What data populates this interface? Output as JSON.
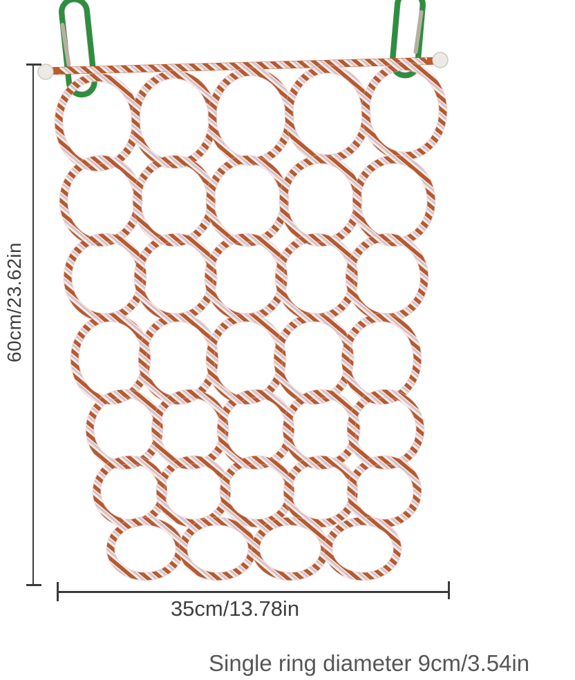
{
  "dimensions": {
    "height_label": "60cm/23.62in",
    "width_label": "35cm/13.78in",
    "ring_note": "Single ring diameter 9cm/3.54in"
  },
  "net": {
    "rows": 7,
    "rings_per_row": [
      5,
      5,
      5,
      5,
      5,
      5,
      4
    ]
  },
  "colors": {
    "background": "#ffffff",
    "rope_orange": "#b45a31",
    "rope_pink": "#debfc5",
    "rope_white": "#f4eeea",
    "rod_orange": "#c05a28",
    "carabiner_green": "#2e8f3e",
    "carabiner_gate": "#b7b0a2",
    "end_ball": "#eceae6",
    "dimension_line": "#3a3a3a",
    "dimension_text": "#404040",
    "note_text": "#565656"
  }
}
